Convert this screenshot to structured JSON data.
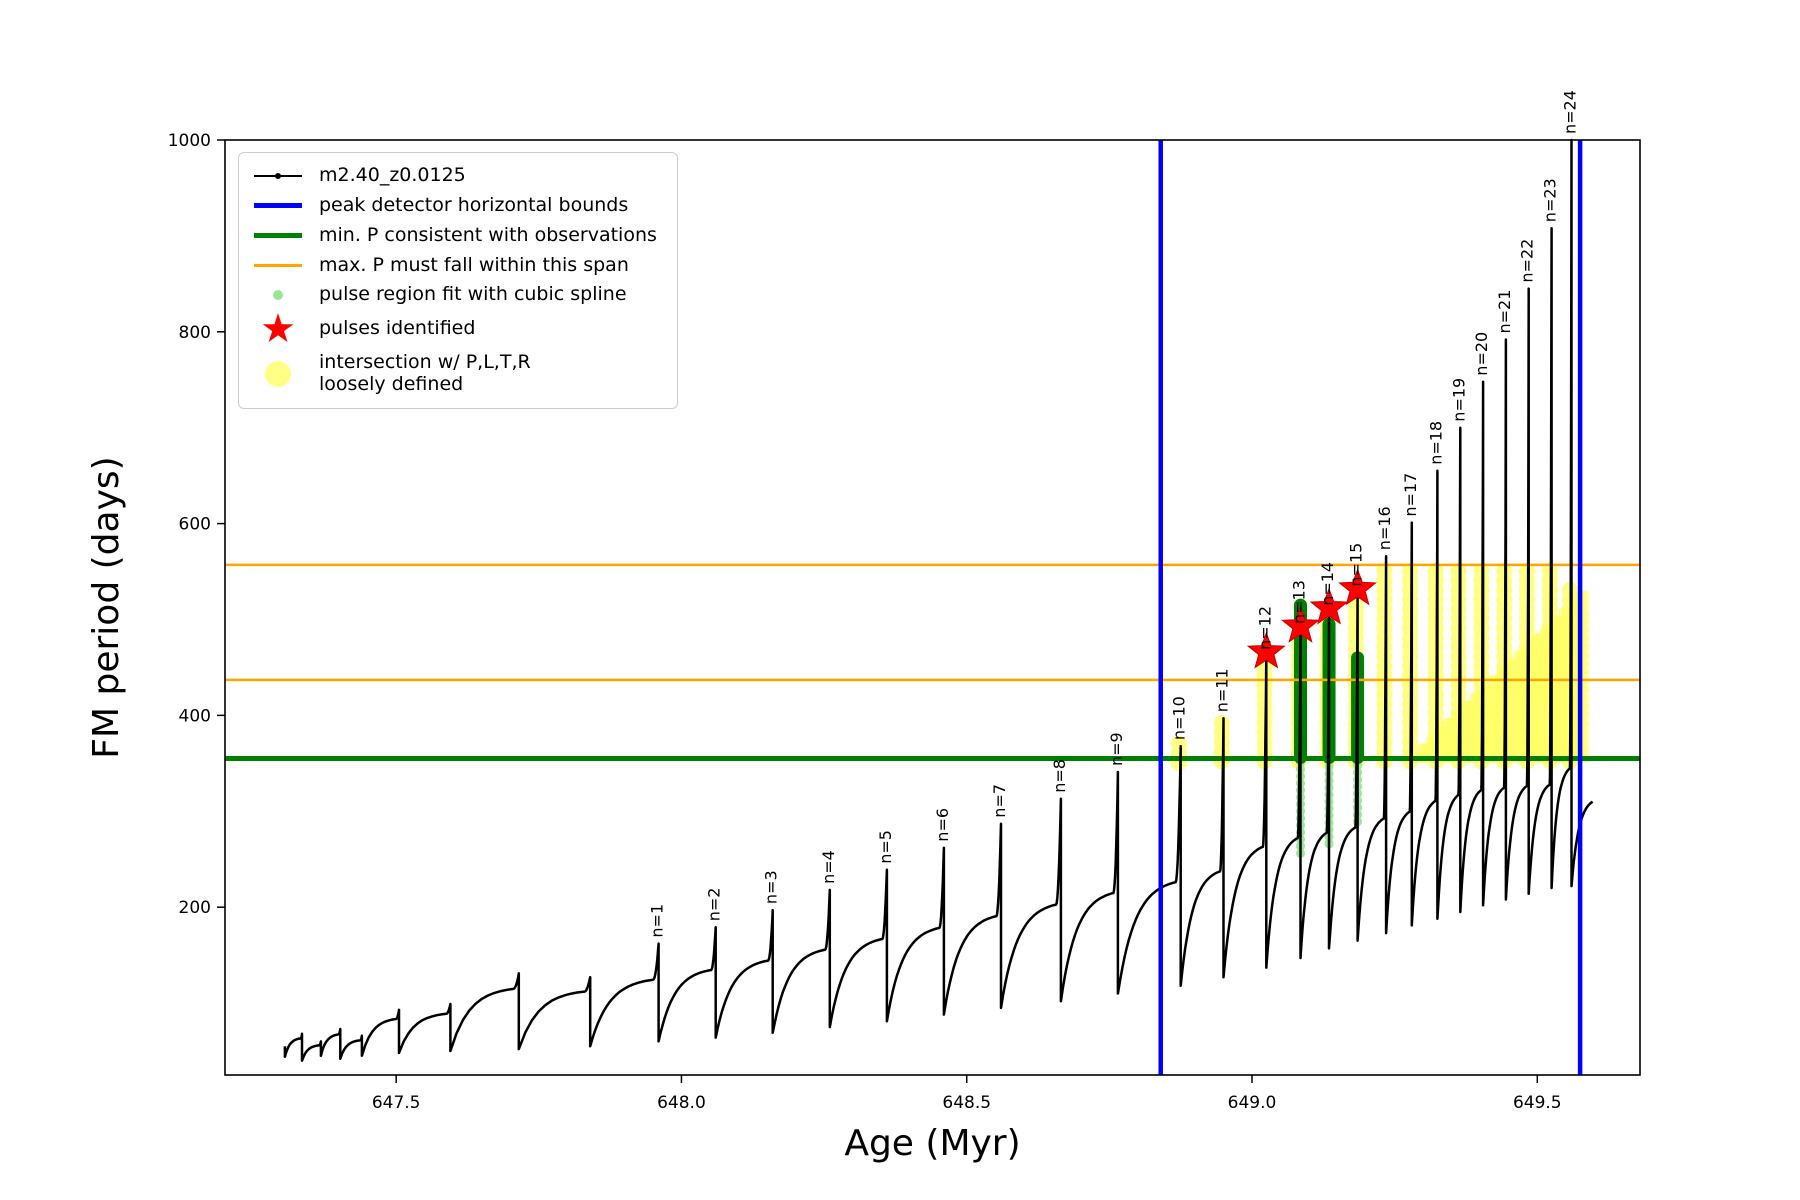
{
  "chart_data": {
    "type": "line",
    "title": "",
    "series": [
      {
        "name": "m2.40_z0.0125"
      }
    ],
    "xlabel": "Age (Myr)",
    "ylabel": "FM period (days)",
    "xlim": [
      647.2,
      649.68
    ],
    "ylim": [
      25,
      1000
    ],
    "xticks": [
      647.5,
      648.0,
      648.5,
      649.0,
      649.5
    ],
    "xtick_labels": [
      "647.5",
      "648.0",
      "648.5",
      "649.0",
      "649.5"
    ],
    "yticks": [
      200,
      400,
      600,
      800,
      1000
    ],
    "ytick_labels": [
      "200",
      "400",
      "600",
      "800",
      "1000"
    ],
    "grid": false,
    "legend_position": "upper left",
    "curve_start": {
      "x": 647.305,
      "y": 55
    },
    "pre_pulses": [
      {
        "x": 647.335,
        "peak": 68,
        "min": 44
      },
      {
        "x": 647.368,
        "peak": 60,
        "min": 40
      },
      {
        "x": 647.402,
        "peak": 73,
        "min": 45
      },
      {
        "x": 647.44,
        "peak": 66,
        "min": 42
      },
      {
        "x": 647.505,
        "peak": 93,
        "min": 45
      },
      {
        "x": 647.595,
        "peak": 99,
        "min": 48
      },
      {
        "x": 647.715,
        "peak": 131,
        "min": 50
      },
      {
        "x": 647.84,
        "peak": 127,
        "min": 52
      }
    ],
    "pulses": [
      {
        "n": 1,
        "label": "n=1",
        "x": 647.96,
        "peak": 162,
        "min": 55
      },
      {
        "n": 2,
        "label": "n=2",
        "x": 648.06,
        "peak": 179,
        "min": 60
      },
      {
        "n": 3,
        "label": "n=3",
        "x": 648.16,
        "peak": 197,
        "min": 64
      },
      {
        "n": 4,
        "label": "n=4",
        "x": 648.26,
        "peak": 218,
        "min": 69
      },
      {
        "n": 5,
        "label": "n=5",
        "x": 648.36,
        "peak": 239,
        "min": 75
      },
      {
        "n": 6,
        "label": "n=6",
        "x": 648.46,
        "peak": 262,
        "min": 81
      },
      {
        "n": 7,
        "label": "n=7",
        "x": 648.56,
        "peak": 287,
        "min": 88
      },
      {
        "n": 8,
        "label": "n=8",
        "x": 648.665,
        "peak": 313,
        "min": 95
      },
      {
        "n": 9,
        "label": "n=9",
        "x": 648.765,
        "peak": 341,
        "min": 102
      },
      {
        "n": 10,
        "label": "n=10",
        "x": 648.875,
        "peak": 368,
        "min": 110
      },
      {
        "n": 11,
        "label": "n=11",
        "x": 648.95,
        "peak": 397,
        "min": 118
      },
      {
        "n": 12,
        "label": "n=12",
        "x": 649.025,
        "peak": 462,
        "min": 127
      },
      {
        "n": 13,
        "label": "n=13",
        "x": 649.085,
        "peak": 489,
        "min": 137
      },
      {
        "n": 14,
        "label": "n=14",
        "x": 649.135,
        "peak": 508,
        "min": 147
      },
      {
        "n": 15,
        "label": "n=15",
        "x": 649.185,
        "peak": 528,
        "min": 157
      },
      {
        "n": 16,
        "label": "n=16",
        "x": 649.235,
        "peak": 566,
        "min": 165
      },
      {
        "n": 17,
        "label": "n=17",
        "x": 649.28,
        "peak": 601,
        "min": 173
      },
      {
        "n": 18,
        "label": "n=18",
        "x": 649.325,
        "peak": 655,
        "min": 181
      },
      {
        "n": 19,
        "label": "n=19",
        "x": 649.365,
        "peak": 700,
        "min": 188
      },
      {
        "n": 20,
        "label": "n=20",
        "x": 649.405,
        "peak": 748,
        "min": 195
      },
      {
        "n": 21,
        "label": "n=21",
        "x": 649.445,
        "peak": 792,
        "min": 202
      },
      {
        "n": 22,
        "label": "n=22",
        "x": 649.485,
        "peak": 845,
        "min": 208
      },
      {
        "n": 23,
        "label": "n=23",
        "x": 649.525,
        "peak": 908,
        "min": 214
      },
      {
        "n": 24,
        "label": "n=24",
        "x": 649.56,
        "peak": 1000,
        "min": 220
      }
    ],
    "tail": {
      "x_end": 649.597,
      "min": 222,
      "end_val": 310
    },
    "min_P_line": 355,
    "max_P_span_lines": [
      437,
      557
    ],
    "peak_detector_bounds": [
      648.84,
      649.575
    ],
    "red_stars": [
      {
        "x": 649.025,
        "y": 466
      },
      {
        "x": 649.085,
        "y": 493
      },
      {
        "x": 649.135,
        "y": 512
      },
      {
        "x": 649.185,
        "y": 532
      }
    ],
    "green_columns": [
      {
        "x": 649.085,
        "y0": 356,
        "y1": 515
      },
      {
        "x": 649.135,
        "y0": 356,
        "y1": 495
      },
      {
        "x": 649.185,
        "y0": 356,
        "y1": 460
      }
    ],
    "lightgreen_columns": [
      {
        "x": 649.085,
        "y0": 256,
        "y1": 352
      },
      {
        "x": 649.135,
        "y0": 266,
        "y1": 352
      },
      {
        "x": 649.185,
        "y0": 289,
        "y1": 352
      }
    ],
    "yellow_columns": [
      {
        "x": 648.872,
        "y0": 350,
        "y1": 374
      },
      {
        "x": 648.947,
        "y0": 352,
        "y1": 399
      },
      {
        "x": 649.022,
        "y0": 352,
        "y1": 462
      },
      {
        "x": 649.082,
        "y0": 352,
        "y1": 489
      },
      {
        "x": 649.132,
        "y0": 352,
        "y1": 508
      },
      {
        "x": 649.182,
        "y0": 352,
        "y1": 528
      },
      {
        "x": 649.232,
        "y0": 352,
        "y1": 558
      },
      {
        "x": 649.277,
        "y0": 352,
        "y1": 558
      },
      {
        "x": 649.322,
        "y0": 352,
        "y1": 556
      },
      {
        "x": 649.362,
        "y0": 352,
        "y1": 554
      },
      {
        "x": 649.402,
        "y0": 352,
        "y1": 556
      },
      {
        "x": 649.442,
        "y0": 352,
        "y1": 558
      },
      {
        "x": 649.482,
        "y0": 352,
        "y1": 556
      },
      {
        "x": 649.522,
        "y0": 352,
        "y1": 554
      },
      {
        "x": 649.557,
        "y0": 352,
        "y1": 540
      }
    ],
    "yellow_wedge": {
      "x0": 649.29,
      "x1": 649.585,
      "step": 0.004,
      "y0": 356,
      "top_start": 362,
      "top_end": 531
    },
    "colors": {
      "series": "#000000",
      "bounds_blue": "#0000ff",
      "min_green": "#008000",
      "max_orange": "#ffa500",
      "spline_lightgreen": "#98e698",
      "pulse_red": "#ff0000",
      "intersection_yellow": "#ffff66"
    }
  },
  "legend": {
    "items": [
      {
        "label": "m2.40_z0.0125",
        "swatch": "black-line-with-dot-marker"
      },
      {
        "label": "peak detector horizontal bounds",
        "swatch": "blue-thick-line"
      },
      {
        "label": "min. P consistent with observations",
        "swatch": "green-thick-line"
      },
      {
        "label": "max. P must fall within this span",
        "swatch": "orange-line"
      },
      {
        "label": "pulse region fit with cubic spline",
        "swatch": "lightgreen-dot"
      },
      {
        "label": "pulses identified",
        "swatch": "red-star",
        "star_char": "★"
      },
      {
        "label": "intersection w/ P,L,T,R\nloosely defined",
        "swatch": "yellow-dot"
      }
    ]
  }
}
